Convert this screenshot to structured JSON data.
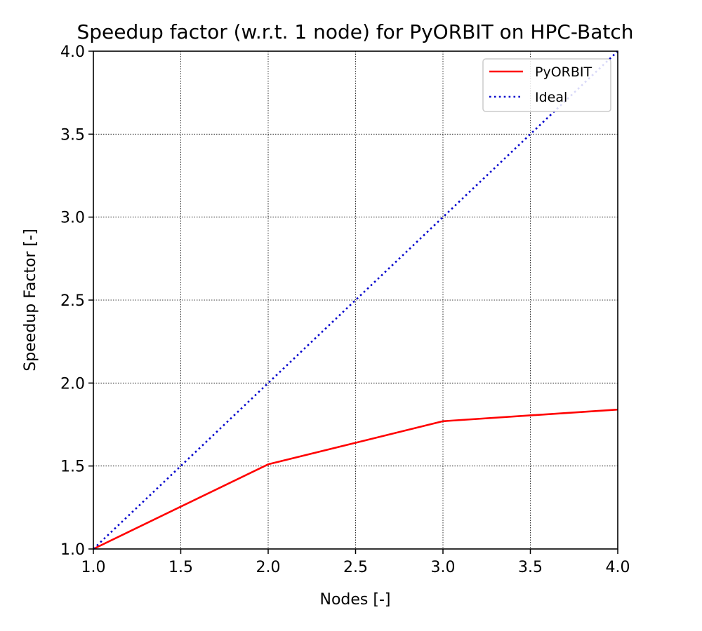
{
  "chart_data": {
    "type": "line",
    "title": "Speedup factor (w.r.t. 1 node) for PyORBIT on HPC-Batch",
    "xlabel": "Nodes [-]",
    "ylabel": "Speedup Factor [-]",
    "xlim": [
      1.0,
      4.0
    ],
    "ylim": [
      1.0,
      4.0
    ],
    "xticks": [
      "1.0",
      "1.5",
      "2.0",
      "2.5",
      "3.0",
      "3.5",
      "4.0"
    ],
    "yticks": [
      "1.0",
      "1.5",
      "2.0",
      "2.5",
      "3.0",
      "3.5",
      "4.0"
    ],
    "grid": true,
    "legend_position": "top-right",
    "series": [
      {
        "name": "PyORBIT",
        "color": "#ff0000",
        "style": "solid",
        "x": [
          1,
          2,
          3,
          4
        ],
        "y": [
          1.0,
          1.51,
          1.77,
          1.84
        ]
      },
      {
        "name": "Ideal",
        "color": "#0000cc",
        "style": "dotted",
        "x": [
          1,
          2,
          3,
          4
        ],
        "y": [
          1.0,
          2.0,
          3.0,
          4.0
        ]
      }
    ]
  }
}
